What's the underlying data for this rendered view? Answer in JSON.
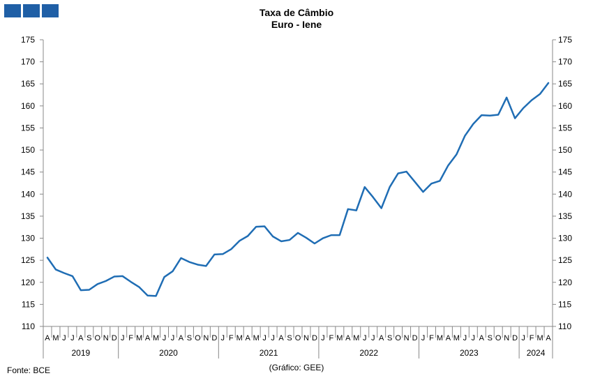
{
  "logo_icon": "three-blue-squares-logo",
  "chart_data": {
    "type": "line",
    "title": "Taxa de Câmbio",
    "subtitle": "Euro - Iene",
    "ylim": [
      110,
      175
    ],
    "yticks": [
      110,
      115,
      120,
      125,
      130,
      135,
      140,
      145,
      150,
      155,
      160,
      165,
      170,
      175
    ],
    "y_axis_left": true,
    "y_axis_right": true,
    "grid": false,
    "line_color": "#1f6db4",
    "months": [
      "A",
      "M",
      "J",
      "J",
      "A",
      "S",
      "O",
      "N",
      "D",
      "J",
      "F",
      "M",
      "A",
      "M",
      "J",
      "J",
      "A",
      "S",
      "O",
      "N",
      "D",
      "J",
      "F",
      "M",
      "A",
      "M",
      "J",
      "J",
      "A",
      "S",
      "O",
      "N",
      "D",
      "J",
      "F",
      "M",
      "A",
      "M",
      "J",
      "J",
      "A",
      "S",
      "O",
      "N",
      "D",
      "J",
      "F",
      "M",
      "A",
      "M",
      "J",
      "J",
      "A",
      "S",
      "O",
      "N",
      "D",
      "J",
      "F",
      "M",
      "A"
    ],
    "years": [
      {
        "label": "2019",
        "start": 0,
        "count": 9
      },
      {
        "label": "2020",
        "start": 9,
        "count": 12
      },
      {
        "label": "2021",
        "start": 21,
        "count": 12
      },
      {
        "label": "2022",
        "start": 33,
        "count": 12
      },
      {
        "label": "2023",
        "start": 45,
        "count": 12
      },
      {
        "label": "2024",
        "start": 57,
        "count": 4
      }
    ],
    "series": [
      {
        "values": [
          125.6,
          122.9,
          122.1,
          121.4,
          118.2,
          118.3,
          119.6,
          120.3,
          121.3,
          121.4,
          120.1,
          118.9,
          117.0,
          116.9,
          121.2,
          122.5,
          125.5,
          124.6,
          124.0,
          123.7,
          126.3,
          126.4,
          127.5,
          129.4,
          130.5,
          132.6,
          132.7,
          130.4,
          129.3,
          129.6,
          131.2,
          130.1,
          128.8,
          130.0,
          130.7,
          130.7,
          136.6,
          136.3,
          141.6,
          139.3,
          136.8,
          141.6,
          144.7,
          145.1,
          142.8,
          140.5,
          142.4,
          143.0,
          146.5,
          149.0,
          153.2,
          155.9,
          157.9,
          157.8,
          158.0,
          161.9,
          157.2,
          159.5,
          161.3,
          162.7,
          165.2
        ]
      }
    ]
  },
  "footer": {
    "source": "Fonte: BCE",
    "credit": "(Gráfico: GEE)"
  }
}
